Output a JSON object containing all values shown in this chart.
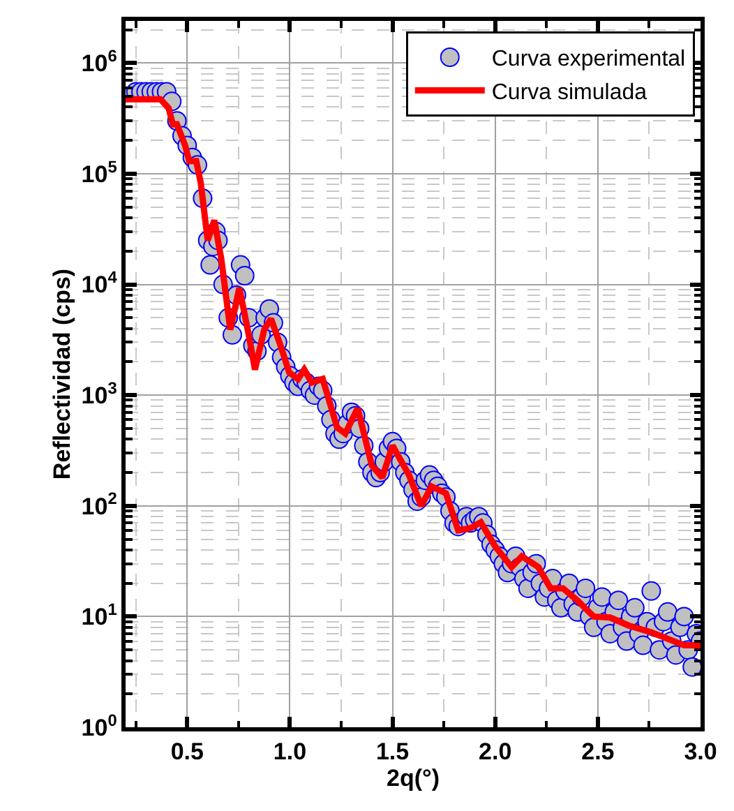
{
  "chart_data": {
    "type": "scatter",
    "xlabel": "2q(°)",
    "ylabel": "Reflectividad (cps)",
    "log": "y",
    "grid": true,
    "legend": "top right",
    "marker": "circle",
    "xlim": [
      0.2,
      3.0
    ],
    "xticks": [
      {
        "value": 0.5,
        "label": "0.5"
      },
      {
        "value": 1,
        "label": "1.0"
      },
      {
        "value": 1.5,
        "label": "1.5"
      },
      {
        "value": 2,
        "label": "2.0"
      },
      {
        "value": 2.5,
        "label": "2.5"
      },
      {
        "value": 3,
        "label": "3.0"
      }
    ],
    "ylim": [
      1,
      2400000
    ],
    "yticks": [
      {
        "value": 1,
        "label": "10$^{0}$"
      },
      {
        "value": 10,
        "label": "10$^{1}$"
      },
      {
        "value": 100,
        "label": "10$^{2}$"
      },
      {
        "value": 1000,
        "label": "10$^{3}$"
      },
      {
        "value": 10000,
        "label": "10$^{4}$"
      },
      {
        "value": 100000,
        "label": "10$^{5}$"
      },
      {
        "value": 1000000,
        "label": "10$^{6}$"
      }
    ],
    "series": [
      {
        "name": "Curva experimental",
        "color": "#c0c0c0",
        "x": [
          0.25,
          0.275,
          0.3,
          0.325,
          0.35,
          0.375,
          0.4,
          0.425,
          0.45,
          0.475,
          0.5,
          0.525,
          0.55,
          0.575,
          0.6,
          0.612,
          0.625,
          0.64,
          0.65,
          0.675,
          0.7,
          0.72,
          0.74,
          0.76,
          0.78,
          0.8,
          0.82,
          0.84,
          0.86,
          0.88,
          0.9,
          0.92,
          0.94,
          0.96,
          0.98,
          1.0,
          1.02,
          1.04,
          1.06,
          1.08,
          1.1,
          1.12,
          1.14,
          1.16,
          1.18,
          1.2,
          1.22,
          1.24,
          1.26,
          1.28,
          1.3,
          1.32,
          1.34,
          1.36,
          1.38,
          1.4,
          1.42,
          1.44,
          1.46,
          1.48,
          1.5,
          1.52,
          1.54,
          1.56,
          1.58,
          1.6,
          1.62,
          1.64,
          1.66,
          1.68,
          1.7,
          1.72,
          1.74,
          1.76,
          1.78,
          1.8,
          1.82,
          1.86,
          1.88,
          1.9,
          1.92,
          1.94,
          1.96,
          1.98,
          2.0,
          2.02,
          2.04,
          2.06,
          2.08,
          2.1,
          2.12,
          2.14,
          2.16,
          2.18,
          2.2,
          2.22,
          2.24,
          2.26,
          2.28,
          2.3,
          2.32,
          2.34,
          2.36,
          2.38,
          2.4,
          2.42,
          2.44,
          2.46,
          2.48,
          2.5,
          2.52,
          2.54,
          2.56,
          2.58,
          2.6,
          2.62,
          2.64,
          2.66,
          2.68,
          2.7,
          2.72,
          2.74,
          2.76,
          2.78,
          2.8,
          2.82,
          2.84,
          2.86,
          2.88,
          2.9,
          2.92,
          2.94,
          2.96,
          2.98,
          3.0
        ],
        "values": [
          550000,
          550000,
          550000,
          550000,
          550000,
          550000,
          550000,
          450000,
          300000,
          220000,
          180000,
          140000,
          120000,
          60000,
          25000,
          15000,
          22000,
          30000,
          25000,
          10000,
          5000,
          3500,
          8000,
          15000,
          12000,
          5000,
          2800,
          2500,
          3500,
          5000,
          6000,
          4500,
          3000,
          2200,
          1800,
          1500,
          1300,
          1200,
          1400,
          1300,
          1100,
          1000,
          1200,
          1100,
          800,
          600,
          450,
          400,
          450,
          550,
          700,
          650,
          500,
          350,
          250,
          200,
          180,
          200,
          250,
          330,
          380,
          330,
          250,
          200,
          170,
          140,
          110,
          120,
          170,
          190,
          170,
          150,
          130,
          120,
          90,
          70,
          65,
          80,
          70,
          75,
          80,
          70,
          55,
          45,
          40,
          35,
          30,
          25,
          30,
          35,
          28,
          22,
          18,
          25,
          30,
          20,
          15,
          18,
          22,
          14,
          12,
          17,
          20,
          13,
          11,
          15,
          18,
          10,
          8,
          12,
          15,
          9,
          7,
          11,
          14,
          8,
          6,
          10,
          12,
          7,
          5.5,
          9,
          17,
          8,
          5,
          9,
          11,
          6,
          4.5,
          8,
          10,
          5,
          3.5,
          7,
          6
        ]
      },
      {
        "name": "Curva simulada",
        "type": "line",
        "color": "#ff0000",
        "marker": "none",
        "line_style": "solid",
        "x": [
          0.2,
          0.37,
          0.41,
          0.43,
          0.45,
          0.49,
          0.51,
          0.544,
          0.566,
          0.6,
          0.632,
          0.666,
          0.71,
          0.754,
          0.8,
          0.83,
          0.875,
          0.908,
          0.952,
          0.997,
          1.04,
          1.07,
          1.107,
          1.16,
          1.23,
          1.27,
          1.33,
          1.4,
          1.45,
          1.5,
          1.58,
          1.64,
          1.69,
          1.76,
          1.82,
          1.88,
          1.93,
          2.0,
          2.08,
          2.13,
          2.21,
          2.27,
          2.33,
          2.4,
          2.48,
          2.56,
          2.65,
          2.76,
          2.85,
          2.92,
          3.0
        ],
        "values": [
          470000,
          470000,
          390000,
          280000,
          280000,
          180000,
          130000,
          130000,
          83000,
          25000,
          38000,
          17000,
          3900,
          9300,
          3500,
          1700,
          3900,
          4900,
          2900,
          1600,
          1400,
          1700,
          1300,
          1400,
          510,
          450,
          760,
          230,
          180,
          350,
          190,
          100,
          150,
          130,
          60,
          63,
          71,
          43,
          28,
          35,
          28,
          18,
          18,
          14,
          10,
          9.8,
          8.3,
          7.2,
          6.2,
          5.5,
          5.5
        ]
      }
    ]
  }
}
